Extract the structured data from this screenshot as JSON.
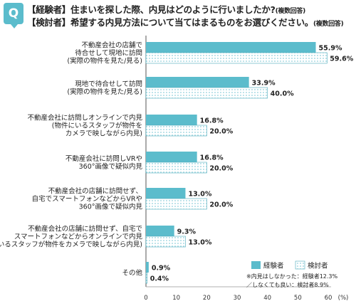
{
  "header": {
    "badge": "Q",
    "question_1": "【経験者】住まいを探した際、内見はどのように行いましたか?",
    "question_1_note": "(複数回答)",
    "question_2": "【検討者】希望する内見方法について当てはまるものをお選びください。",
    "question_2_note": "(複数回答)"
  },
  "colors": {
    "experienced": "#5bbccc",
    "considering_dots": "#8fd0dc",
    "considering_bg": "#ffffff",
    "bar_border": "#4aa9ba"
  },
  "chart_data": {
    "type": "bar",
    "orientation": "horizontal",
    "categories": [
      [
        "不動産会社の店舗で",
        "待合せして現地に訪問",
        "(実際の物件を見た/見る)"
      ],
      [
        "現地で待合せして訪問",
        "(実際の物件を見た/見る)"
      ],
      [
        "不動産会社に訪問しオンラインで内見",
        "(物件にいるスタッフが物件を",
        "カメラで映しながら内見)"
      ],
      [
        "不動産会社に訪問しVRや",
        "360°画像で疑似内見"
      ],
      [
        "不動産会社の店舗に訪問せず、",
        "自宅でスマートフォンなどからVRや",
        "360°画像で疑似内見"
      ],
      [
        "不動産会社の店舗に訪問せず、自宅で",
        "スマートフォンなどからオンラインで内見",
        "(物件にいるスタッフが物件をカメラで映しながら内見)"
      ],
      [
        "その他"
      ]
    ],
    "series": [
      {
        "name": "経験者",
        "values": [
          55.9,
          33.9,
          16.8,
          16.8,
          13.0,
          9.3,
          0.9
        ]
      },
      {
        "name": "検討者",
        "values": [
          59.6,
          40.0,
          20.0,
          20.0,
          20.0,
          13.0,
          0.4
        ]
      }
    ],
    "value_labels": [
      [
        "55.9%",
        "33.9%",
        "16.8%",
        "16.8%",
        "13.0%",
        "9.3%",
        "0.9%"
      ],
      [
        "59.6%",
        "40.0%",
        "20.0%",
        "20.0%",
        "20.0%",
        "13.0%",
        "0.4%"
      ]
    ],
    "xlim": [
      0,
      60
    ],
    "xticks": [
      "0",
      "10",
      "20",
      "30",
      "40",
      "50",
      "60"
    ],
    "xunit": "(%)",
    "legend_position": "bottom-right",
    "notes": [
      "※内見はしなかった：経験者12.3%",
      "／しなくても良い：検討者8.9%"
    ]
  }
}
